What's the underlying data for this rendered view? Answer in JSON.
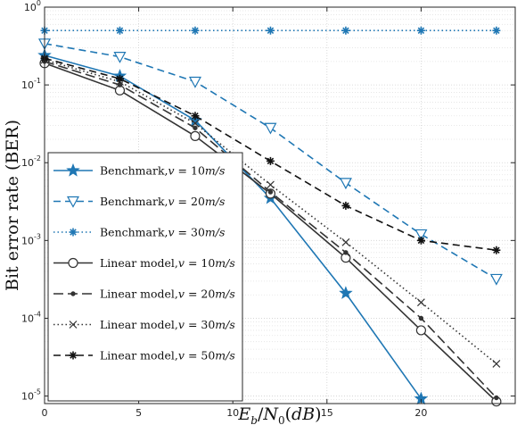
{
  "chart_data": {
    "type": "line",
    "title": "",
    "xlabel": "E_b/N_0(dB)",
    "ylabel": "Bit error rate (BER)",
    "xlim": [
      0,
      25
    ],
    "ylim": [
      8e-06,
      1
    ],
    "yscale": "log",
    "grid": true,
    "legend_position": "lower-left",
    "x_ticks": [
      "0",
      "5",
      "10",
      "15",
      "20"
    ],
    "y_ticks": [
      {
        "base": "10",
        "exp": "0",
        "value": 1
      },
      {
        "base": "10",
        "exp": "-1",
        "value": 0.1
      },
      {
        "base": "10",
        "exp": "-2",
        "value": 0.01
      },
      {
        "base": "10",
        "exp": "-3",
        "value": 0.001
      },
      {
        "base": "10",
        "exp": "-4",
        "value": 0.0001
      },
      {
        "base": "10",
        "exp": "-5",
        "value": 1e-05
      }
    ],
    "series": [
      {
        "name": "Benchmark,v = 10m/s",
        "color": "#1f77b4",
        "dash": "solid",
        "marker": "star-filled",
        "x": [
          0,
          4,
          8,
          12,
          16,
          20
        ],
        "y": [
          0.24,
          0.13,
          0.035,
          0.0035,
          0.00021,
          9.2e-06
        ]
      },
      {
        "name": "Benchmark,v = 20m/s",
        "color": "#1f77b4",
        "dash": "dashed",
        "marker": "triangle-down",
        "x": [
          0,
          4,
          8,
          12,
          16,
          20,
          24
        ],
        "y": [
          0.34,
          0.23,
          0.11,
          0.028,
          0.0055,
          0.0012,
          0.00032
        ]
      },
      {
        "name": "Benchmark,v = 30m/s",
        "color": "#1f77b4",
        "dash": "dotted",
        "marker": "asterisk",
        "x": [
          0,
          4,
          8,
          12,
          16,
          20,
          24
        ],
        "y": [
          0.5,
          0.5,
          0.5,
          0.5,
          0.5,
          0.5,
          0.5
        ]
      },
      {
        "name": "Linear model,v = 10m/s",
        "color": "#333333",
        "dash": "solid",
        "marker": "circle",
        "x": [
          0,
          4,
          8,
          12,
          16,
          20,
          24
        ],
        "y": [
          0.19,
          0.085,
          0.022,
          0.004,
          0.0006,
          7e-05,
          8.5e-06
        ]
      },
      {
        "name": "Linear model,v = 20m/s",
        "color": "#333333",
        "dash": "longdash",
        "marker": "dot",
        "x": [
          0,
          4,
          8,
          12,
          16,
          20,
          24
        ],
        "y": [
          0.2,
          0.1,
          0.028,
          0.0042,
          0.0007,
          0.0001,
          9.5e-06
        ]
      },
      {
        "name": "Linear model,v = 30m/s",
        "color": "#333333",
        "dash": "dotted",
        "marker": "x",
        "x": [
          0,
          4,
          8,
          12,
          16,
          20,
          24
        ],
        "y": [
          0.21,
          0.11,
          0.032,
          0.0052,
          0.00095,
          0.00016,
          2.6e-05
        ]
      },
      {
        "name": "Linear model,v = 50m/s",
        "color": "#111111",
        "dash": "dashed",
        "marker": "asterisk",
        "x": [
          0,
          4,
          8,
          12,
          16,
          20,
          24
        ],
        "y": [
          0.22,
          0.12,
          0.04,
          0.0105,
          0.0028,
          0.001,
          0.00075
        ]
      }
    ]
  }
}
